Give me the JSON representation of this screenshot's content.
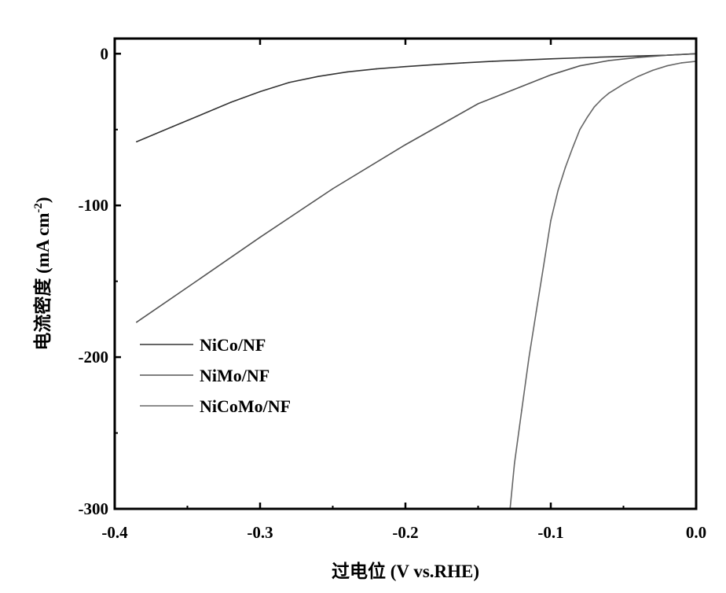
{
  "chart_data": {
    "type": "line",
    "xlabel": "过电位 (V vs.RHE)",
    "ylabel": "电流密度 (mA cm",
    "ylabel_superscript": "-2",
    "ylabel_close": ")",
    "xlim": [
      -0.4,
      0.0
    ],
    "ylim": [
      -300,
      10
    ],
    "x_ticks": [
      -0.4,
      -0.3,
      -0.2,
      -0.1,
      0.0
    ],
    "x_tick_labels": [
      "-0.4",
      "-0.3",
      "-0.2",
      "-0.1",
      "0.0"
    ],
    "y_ticks": [
      0,
      -100,
      -200,
      -300
    ],
    "y_tick_labels": [
      "0",
      "-100",
      "-200",
      "-300"
    ],
    "grid": false,
    "legend_position": "left",
    "series": [
      {
        "name": "NiCo/NF",
        "color": "#333333",
        "x": [
          -0.385,
          -0.36,
          -0.34,
          -0.32,
          -0.3,
          -0.28,
          -0.26,
          -0.24,
          -0.22,
          -0.2,
          -0.18,
          -0.16,
          -0.14,
          -0.12,
          -0.1,
          -0.08,
          -0.06,
          -0.04,
          -0.02,
          0.0
        ],
        "y": [
          -58,
          -48,
          -40,
          -32,
          -25,
          -19,
          -15,
          -12,
          -10,
          -8.5,
          -7.2,
          -6,
          -5,
          -4.2,
          -3.4,
          -2.7,
          -2.1,
          -1.5,
          -1,
          0
        ]
      },
      {
        "name": "NiMo/NF",
        "color": "#555555",
        "x": [
          -0.385,
          -0.35,
          -0.3,
          -0.25,
          -0.2,
          -0.15,
          -0.1,
          -0.08,
          -0.06,
          -0.04,
          -0.02,
          0.0
        ],
        "y": [
          -177,
          -154,
          -121,
          -89,
          -60,
          -33,
          -14,
          -8,
          -4.5,
          -2.5,
          -1,
          0
        ]
      },
      {
        "name": "NiCoMo/NF",
        "color": "#666666",
        "x": [
          -0.128,
          -0.125,
          -0.12,
          -0.115,
          -0.11,
          -0.105,
          -0.1,
          -0.095,
          -0.09,
          -0.085,
          -0.08,
          -0.075,
          -0.07,
          -0.065,
          -0.06,
          -0.055,
          -0.05,
          -0.04,
          -0.03,
          -0.02,
          -0.01,
          0.0
        ],
        "y": [
          -300,
          -270,
          -235,
          -200,
          -170,
          -140,
          -110,
          -90,
          -75,
          -62,
          -50,
          -42,
          -35,
          -30,
          -26,
          -23,
          -20,
          -15,
          -11,
          -8,
          -6,
          -5
        ]
      }
    ]
  }
}
